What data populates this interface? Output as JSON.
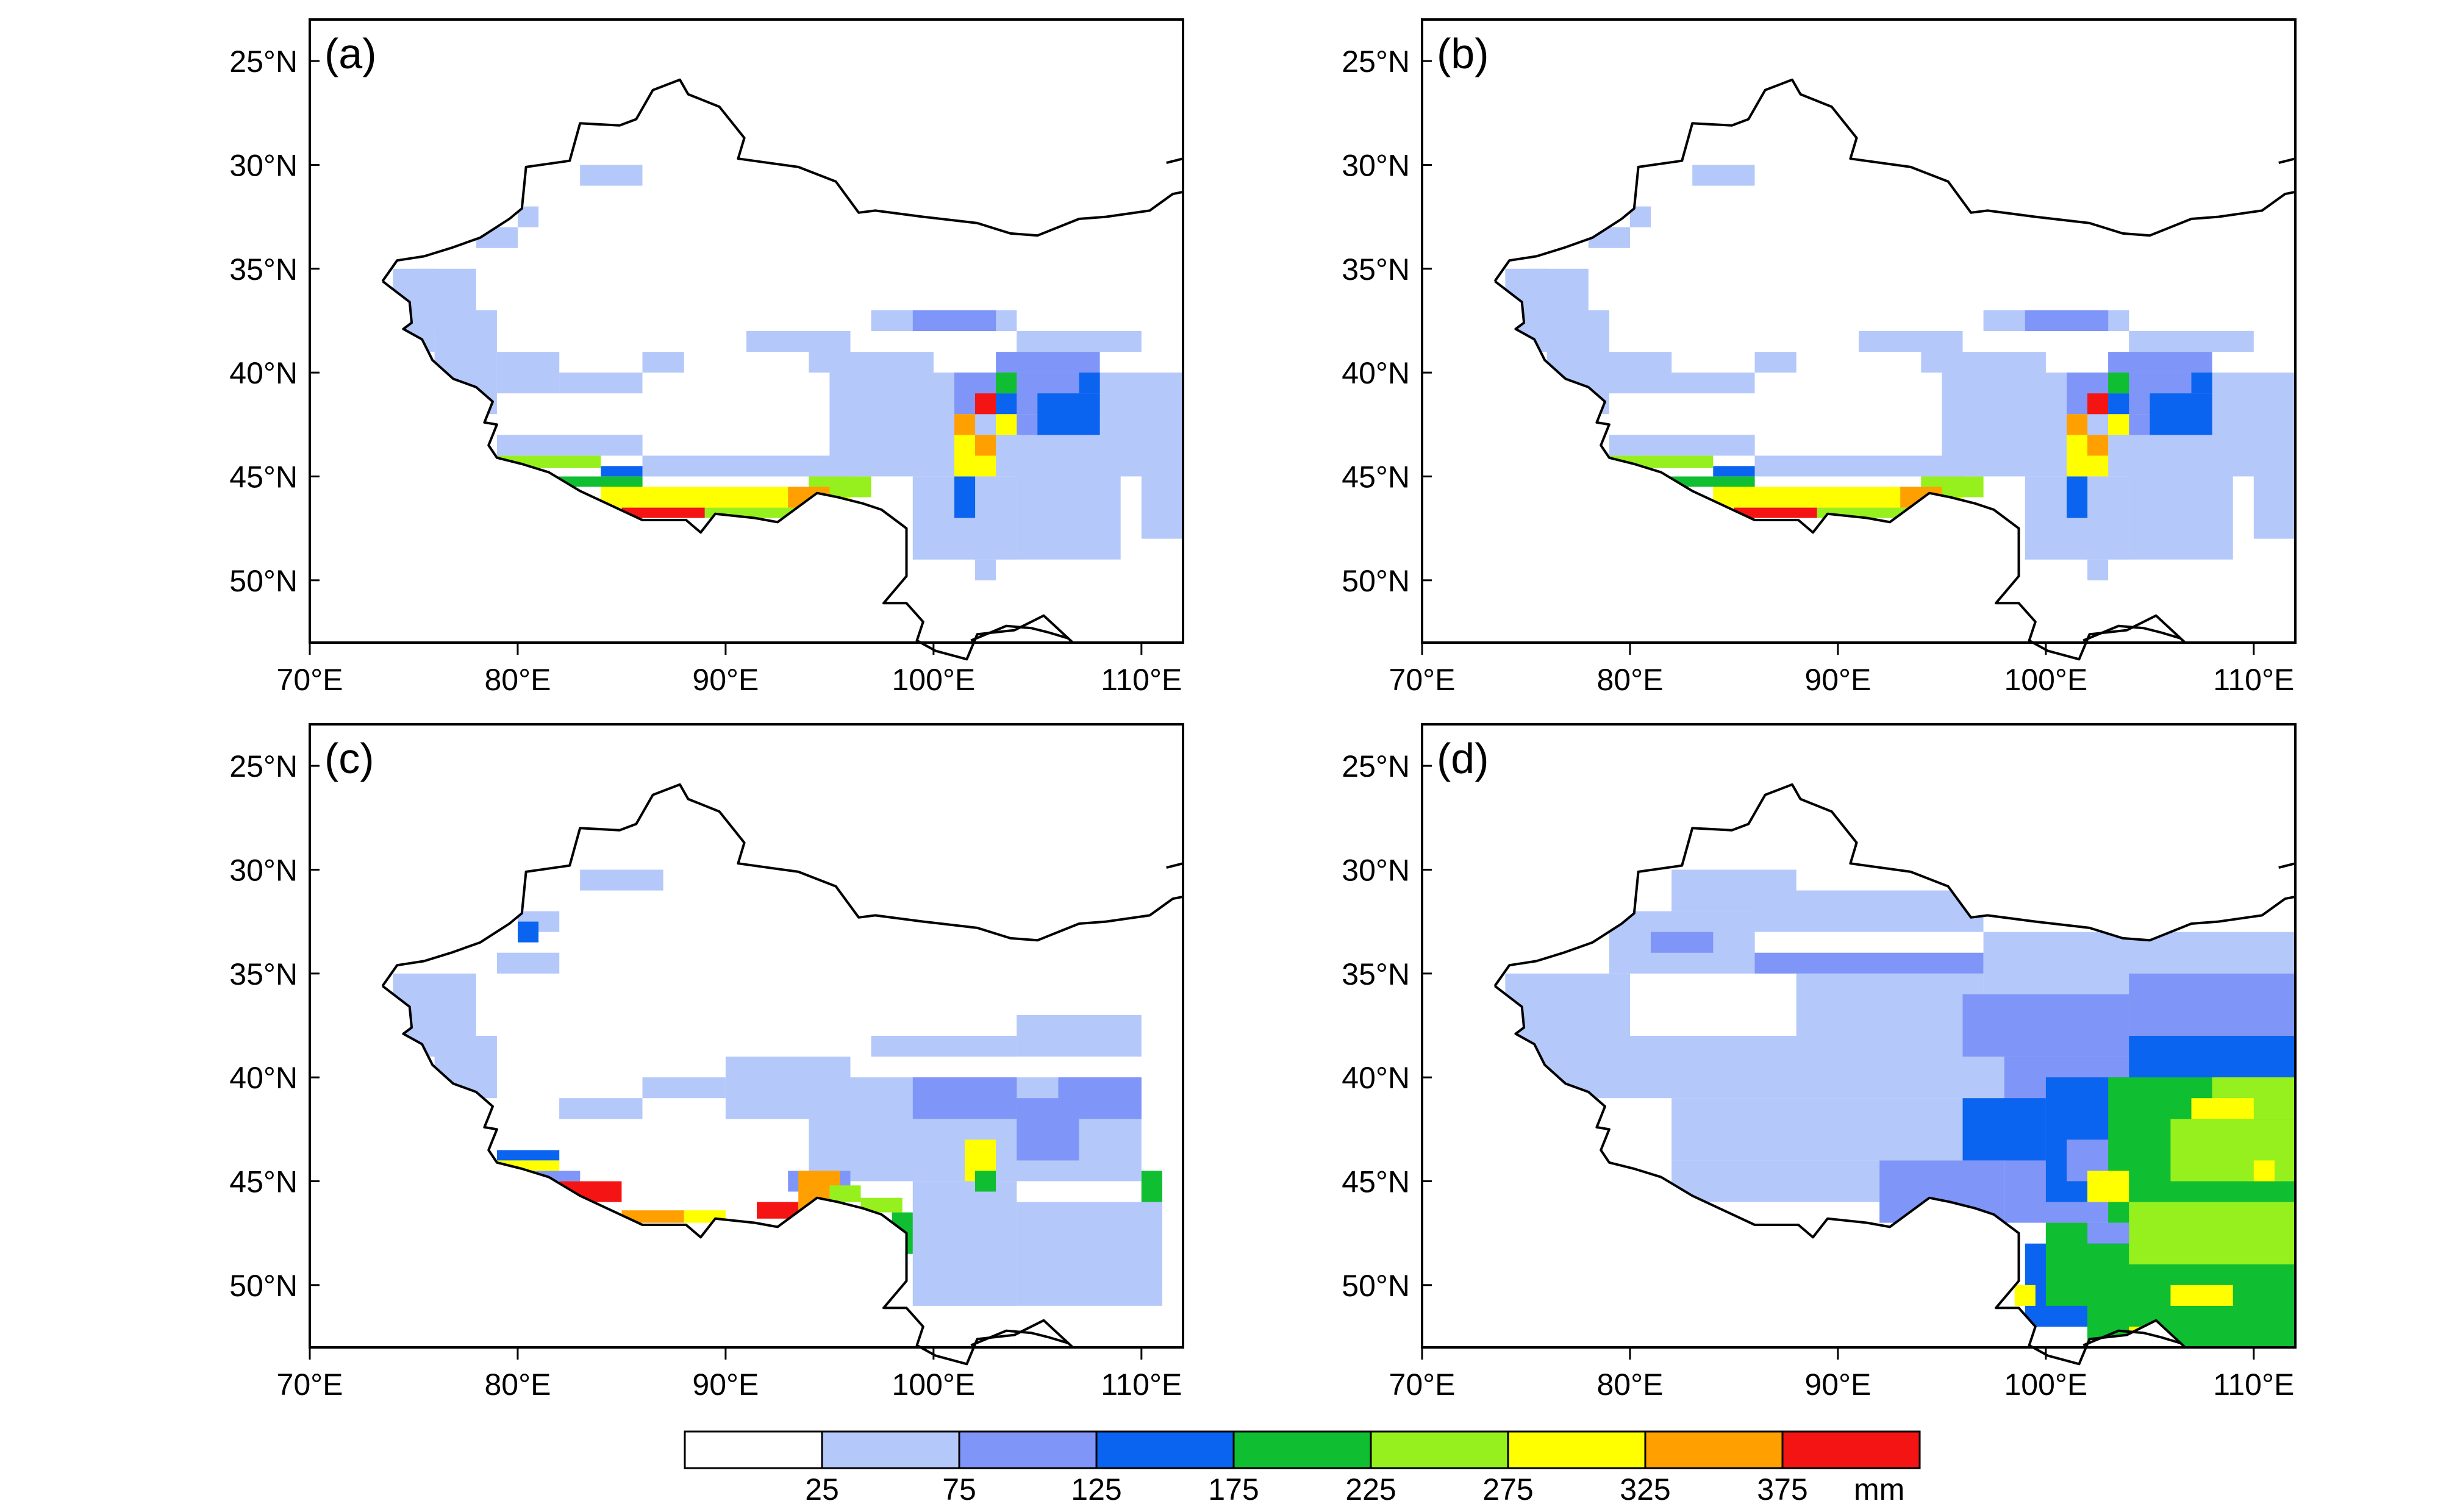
{
  "figure": {
    "panels": [
      {
        "label": "(a)",
        "style": "coarse"
      },
      {
        "label": "(b)",
        "style": "coarse2"
      },
      {
        "label": "(c)",
        "style": "fine"
      },
      {
        "label": "(d)",
        "style": "smooth"
      }
    ],
    "lat_ticks": [
      "50°N",
      "45°N",
      "40°N",
      "35°N",
      "30°N",
      "25°N"
    ],
    "lon_ticks": [
      "70°E",
      "80°E",
      "90°E",
      "100°E",
      "110°E"
    ],
    "colorbar": {
      "labels": [
        "25",
        "75",
        "125",
        "175",
        "225",
        "275",
        "325",
        "375"
      ],
      "unit": "mm",
      "colors": [
        "#ffffff",
        "#b4c8fa",
        "#7f96f8",
        "#0a64f0",
        "#10be32",
        "#96f01e",
        "#ffff00",
        "#ffa000",
        "#f51414"
      ]
    }
  },
  "chart_data": {
    "type": "heatmap",
    "lon_range": [
      70,
      112
    ],
    "lat_range": [
      22,
      52
    ],
    "lon_ticks": [
      70,
      80,
      90,
      100,
      110
    ],
    "lat_ticks": [
      25,
      30,
      35,
      40,
      45,
      50
    ],
    "levels": [
      25,
      75,
      125,
      175,
      225,
      275,
      325,
      375
    ],
    "unit": "mm",
    "panels": [
      "(a)",
      "(b)",
      "(c)",
      "(d)"
    ]
  }
}
